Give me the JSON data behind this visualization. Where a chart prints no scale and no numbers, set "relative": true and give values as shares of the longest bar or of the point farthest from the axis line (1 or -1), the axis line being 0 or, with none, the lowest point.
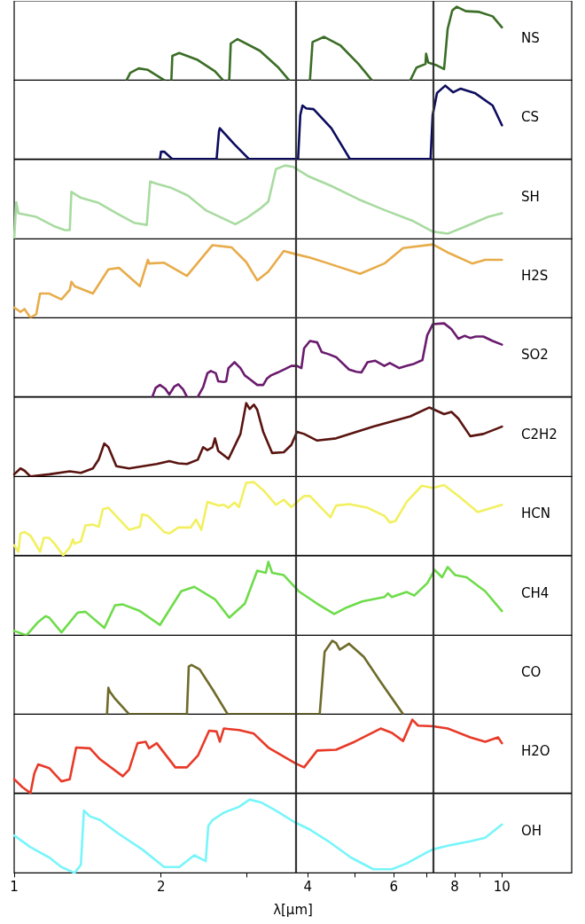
{
  "chart_data": [
    {
      "type": "line",
      "relative": true,
      "xlim": [
        1,
        13.9
      ],
      "tick_labels": false,
      "ref_lines": [
        {
          "axis": "x",
          "value": 3.78,
          "color": "#333333"
        },
        {
          "axis": "x",
          "value": 7.24,
          "color": "#333333"
        }
      ],
      "log": "x",
      "xticks": [
        1,
        2,
        4,
        6,
        8,
        10
      ],
      "series": [
        {
          "name": "NS",
          "color": "#3b6e26",
          "x": [
            1.7,
            1.73,
            1.8,
            1.88,
            2.03,
            2.06,
            2.1,
            2.11,
            2.18,
            2.37,
            2.58,
            2.68,
            2.72,
            2.76,
            2.78,
            2.87,
            3.19,
            3.47,
            3.66,
            3.8,
            4.04,
            4.09,
            4.32,
            4.67,
            5.08,
            5.41,
            5.9,
            6.49,
            6.68,
            6.97,
            6.99,
            7.06,
            7.36,
            7.61,
            7.74,
            7.91,
            8.08,
            8.43,
            8.98,
            9.57,
            10
          ],
          "values": [
            0,
            0.1,
            0.16,
            0.14,
            0,
            null,
            0,
            0.33,
            0.37,
            0.28,
            0.12,
            0,
            null,
            0,
            0.5,
            0.56,
            0.4,
            0.18,
            0,
            null,
            0,
            0.52,
            0.59,
            0.47,
            0.22,
            0,
            null,
            0,
            0.17,
            0.22,
            0.36,
            0.24,
            0.2,
            0.15,
            0.7,
            0.95,
            1.0,
            0.94,
            0.93,
            0.87,
            0.72
          ]
        }
      ]
    },
    {
      "type": "line",
      "relative": true,
      "xlim": [
        1,
        13.9
      ],
      "tick_labels": false,
      "ref_lines": [
        {
          "axis": "x",
          "value": 3.78,
          "color": "#333333"
        },
        {
          "axis": "x",
          "value": 7.24,
          "color": "#333333"
        }
      ],
      "log": "x",
      "xticks": [
        1,
        2,
        4,
        6,
        8,
        10
      ],
      "series": [
        {
          "name": "CS",
          "color": "#0c0c5e",
          "x": [
            1.99,
            2.0,
            2.03,
            2.11,
            2.6,
            2.63,
            2.64,
            2.69,
            2.83,
            3.03,
            3.82,
            3.86,
            3.9,
            3.97,
            4.11,
            4.47,
            4.88,
            7.14,
            7.21,
            7.36,
            7.65,
            7.94,
            8.23,
            8.8,
            9.57,
            10
          ],
          "values": [
            0,
            0.1,
            0.1,
            0,
            0,
            0.38,
            0.42,
            0.36,
            0.2,
            0,
            0,
            0.6,
            0.73,
            0.69,
            0.68,
            0.42,
            0,
            0,
            0.6,
            0.9,
            1.0,
            0.91,
            0.96,
            0.9,
            0.73,
            0.46
          ]
        }
      ]
    },
    {
      "type": "line",
      "relative": true,
      "xlim": [
        1,
        13.9
      ],
      "tick_labels": false,
      "ref_lines": [
        {
          "axis": "x",
          "value": 3.78,
          "color": "#333333"
        },
        {
          "axis": "x",
          "value": 7.24,
          "color": "#333333"
        }
      ],
      "log": "x",
      "xticks": [
        1,
        2,
        4,
        6,
        8,
        10
      ],
      "series": [
        {
          "name": "SH",
          "color": "#a8dba0",
          "x": [
            1.0,
            1.01,
            1.02,
            1.11,
            1.21,
            1.27,
            1.3,
            1.31,
            1.37,
            1.49,
            1.62,
            1.76,
            1.87,
            1.9,
            1.96,
            2.09,
            2.27,
            2.47,
            2.84,
            2.99,
            3.19,
            3.32,
            3.44,
            3.59,
            3.74,
            4.02,
            4.47,
            5.08,
            5.76,
            6.54,
            7.21,
            7.74,
            8.43,
            9.37,
            10
          ],
          "values": [
            0,
            0.5,
            0.35,
            0.3,
            0.17,
            0.12,
            0.12,
            0.64,
            0.56,
            0.49,
            0.35,
            0.22,
            0.19,
            0.78,
            0.75,
            0.7,
            0.59,
            0.39,
            0.2,
            0.28,
            0.41,
            0.51,
            0.95,
            1.0,
            0.98,
            0.85,
            0.72,
            0.54,
            0.39,
            0.25,
            0.1,
            0.07,
            0.17,
            0.3,
            0.35
          ]
        }
      ]
    },
    {
      "type": "line",
      "relative": true,
      "xlim": [
        1,
        13.9
      ],
      "tick_labels": false,
      "ref_lines": [
        {
          "axis": "x",
          "value": 3.78,
          "color": "#333333"
        },
        {
          "axis": "x",
          "value": 7.24,
          "color": "#333333"
        }
      ],
      "log": "x",
      "xticks": [
        1,
        2,
        4,
        6,
        8,
        10
      ],
      "series": [
        {
          "name": "H2S",
          "color": "#e8ac4a",
          "x": [
            1.0,
            1.03,
            1.05,
            1.08,
            1.11,
            1.13,
            1.18,
            1.25,
            1.3,
            1.31,
            1.33,
            1.45,
            1.56,
            1.64,
            1.81,
            1.88,
            1.89,
            2.03,
            2.26,
            2.55,
            2.79,
            2.99,
            3.15,
            3.32,
            3.57,
            3.76,
            4.04,
            4.41,
            5.12,
            5.74,
            6.27,
            7.22,
            7.74,
            8.69,
            9.24,
            10
          ],
          "values": [
            0.14,
            0.08,
            0.12,
            0,
            0.05,
            0.33,
            0.33,
            0.25,
            0.38,
            0.49,
            0.43,
            0.33,
            0.66,
            0.68,
            0.43,
            0.79,
            0.74,
            0.75,
            0.57,
            0.99,
            0.96,
            0.76,
            0.51,
            0.63,
            0.91,
            0.87,
            0.82,
            0.74,
            0.6,
            0.74,
            0.95,
            1.0,
            0.89,
            0.74,
            0.79,
            0.79
          ]
        }
      ]
    },
    {
      "type": "line",
      "relative": true,
      "xlim": [
        1,
        13.9
      ],
      "tick_labels": false,
      "ref_lines": [
        {
          "axis": "x",
          "value": 3.78,
          "color": "#333333"
        },
        {
          "axis": "x",
          "value": 7.24,
          "color": "#333333"
        }
      ],
      "log": "x",
      "xticks": [
        1,
        2,
        4,
        6,
        8,
        10
      ],
      "series": [
        {
          "name": "SO2",
          "color": "#6a1b6e",
          "x": [
            1.92,
            1.95,
            1.99,
            2.04,
            2.08,
            2.13,
            2.17,
            2.22,
            2.26,
            2.32,
            2.38,
            2.44,
            2.49,
            2.53,
            2.59,
            2.62,
            2.69,
            2.72,
            2.75,
            2.83,
            2.91,
            2.97,
            3.04,
            3.15,
            3.24,
            3.3,
            3.36,
            3.47,
            3.6,
            3.7,
            3.8,
            3.88,
            3.93,
            4.04,
            4.18,
            4.27,
            4.41,
            4.57,
            4.86,
            5.03,
            5.15,
            5.3,
            5.5,
            5.74,
            5.89,
            6.16,
            6.38,
            6.61,
            6.87,
            7.03,
            7.22,
            7.61,
            7.88,
            8.14,
            8.39,
            8.61,
            8.84,
            9.16,
            9.57,
            10
          ],
          "values": [
            0,
            0.12,
            0.16,
            0.11,
            0.03,
            0.14,
            0.17,
            0.1,
            0,
            null,
            0,
            0.13,
            0.32,
            0.35,
            0.32,
            0.21,
            0.2,
            0.21,
            0.39,
            0.47,
            0.39,
            0.29,
            0.24,
            0.16,
            0.16,
            0.25,
            0.29,
            0.33,
            0.38,
            0.42,
            0.42,
            0.39,
            0.66,
            0.76,
            0.74,
            0.61,
            0.58,
            0.54,
            0.37,
            0.34,
            0.33,
            0.47,
            0.49,
            0.42,
            0.46,
            0.39,
            0.42,
            0.45,
            0.5,
            0.84,
            0.99,
            1.0,
            0.92,
            0.79,
            0.83,
            0.8,
            0.82,
            0.82,
            0.76,
            0.71
          ]
        }
      ]
    },
    {
      "type": "line",
      "relative": true,
      "xlim": [
        1,
        13.9
      ],
      "tick_labels": false,
      "ref_lines": [
        {
          "axis": "x",
          "value": 3.78,
          "color": "#333333"
        },
        {
          "axis": "x",
          "value": 7.24,
          "color": "#333333"
        }
      ],
      "log": "x",
      "xticks": [
        1,
        2,
        4,
        6,
        8,
        10
      ],
      "series": [
        {
          "name": "C2H2",
          "color": "#5a1410",
          "x": [
            1.0,
            1.03,
            1.05,
            1.08,
            1.18,
            1.3,
            1.37,
            1.45,
            1.49,
            1.53,
            1.56,
            1.62,
            1.72,
            1.96,
            2.08,
            2.17,
            2.26,
            2.38,
            2.44,
            2.49,
            2.55,
            2.58,
            2.62,
            2.75,
            2.91,
            2.99,
            3.04,
            3.1,
            3.15,
            3.24,
            3.38,
            3.57,
            3.7,
            3.8,
            3.93,
            4.18,
            4.57,
            5.45,
            6.49,
            7.09,
            7.22,
            7.61,
            7.88,
            8.14,
            8.61,
            9.16,
            10
          ],
          "values": [
            0.03,
            0.11,
            0.08,
            0,
            0.03,
            0.07,
            0.05,
            0.11,
            0.23,
            0.45,
            0.4,
            0.14,
            0.11,
            0.17,
            0.21,
            0.18,
            0.17,
            0.23,
            0.4,
            0.36,
            0.4,
            0.52,
            0.35,
            0.24,
            0.58,
            1.0,
            0.92,
            0.98,
            0.91,
            0.61,
            0.32,
            0.33,
            0.43,
            0.61,
            0.58,
            0.49,
            0.52,
            0.68,
            0.82,
            0.94,
            0.92,
            0.85,
            0.88,
            0.79,
            0.55,
            0.58,
            0.68
          ]
        }
      ]
    },
    {
      "type": "line",
      "relative": true,
      "xlim": [
        1,
        13.9
      ],
      "tick_labels": false,
      "ref_lines": [
        {
          "axis": "x",
          "value": 3.78,
          "color": "#333333"
        },
        {
          "axis": "x",
          "value": 7.24,
          "color": "#333333"
        }
      ],
      "log": "x",
      "xticks": [
        1,
        2,
        4,
        6,
        8,
        10
      ],
      "series": [
        {
          "name": "HCN",
          "color": "#f2f060",
          "x": [
            1.0,
            1.02,
            1.03,
            1.05,
            1.08,
            1.13,
            1.15,
            1.18,
            1.21,
            1.26,
            1.3,
            1.32,
            1.33,
            1.37,
            1.4,
            1.45,
            1.49,
            1.52,
            1.56,
            1.72,
            1.81,
            1.83,
            1.88,
            2.03,
            2.08,
            2.17,
            2.3,
            2.36,
            2.42,
            2.49,
            2.62,
            2.69,
            2.75,
            2.83,
            2.89,
            2.99,
            3.1,
            3.24,
            3.44,
            3.57,
            3.7,
            3.93,
            4.04,
            4.45,
            4.57,
            4.86,
            5.3,
            5.74,
            5.89,
            6.05,
            6.38,
            6.85,
            7.22,
            7.61,
            8.14,
            8.92,
            10
          ],
          "values": [
            0.14,
            0.05,
            0.3,
            0.32,
            0.27,
            0.05,
            0.24,
            0.24,
            0.16,
            0,
            0.11,
            0.22,
            0.16,
            0.19,
            0.41,
            0.42,
            0.39,
            0.63,
            0.65,
            0.35,
            0.39,
            0.56,
            0.54,
            0.32,
            0.3,
            0.38,
            0.38,
            0.49,
            0.35,
            0.73,
            0.68,
            0.69,
            0.65,
            0.72,
            0.66,
            0.99,
            1.0,
            0.89,
            0.69,
            0.76,
            0.66,
            0.81,
            0.81,
            0.52,
            0.68,
            0.7,
            0.65,
            0.54,
            0.45,
            0.47,
            0.73,
            0.95,
            0.92,
            0.96,
            0.81,
            0.59,
            0.69
          ]
        }
      ]
    },
    {
      "type": "line",
      "relative": true,
      "xlim": [
        1,
        13.9
      ],
      "tick_labels": false,
      "ref_lines": [
        {
          "axis": "x",
          "value": 3.78,
          "color": "#333333"
        },
        {
          "axis": "x",
          "value": 7.24,
          "color": "#333333"
        }
      ],
      "log": "x",
      "xticks": [
        1,
        2,
        4,
        6,
        8,
        10
      ],
      "series": [
        {
          "name": "CH4",
          "color": "#6edc4a",
          "x": [
            1.0,
            1.06,
            1.12,
            1.16,
            1.18,
            1.25,
            1.35,
            1.4,
            1.53,
            1.61,
            1.67,
            1.81,
            1.99,
            2.2,
            2.34,
            2.58,
            2.76,
            2.97,
            3.15,
            3.28,
            3.32,
            3.38,
            3.57,
            3.83,
            4.18,
            4.53,
            4.81,
            5.17,
            5.74,
            5.84,
            5.95,
            6.38,
            6.61,
            7.03,
            7.28,
            7.54,
            7.74,
            8.02,
            8.46,
            9.24,
            10
          ],
          "values": [
            0.06,
            0,
            0.18,
            0.26,
            0.24,
            0.04,
            0.31,
            0.32,
            0.1,
            0.41,
            0.42,
            0.33,
            0.14,
            0.6,
            0.66,
            0.49,
            0.24,
            0.43,
            0.88,
            0.85,
            1.0,
            0.85,
            0.82,
            0.6,
            0.43,
            0.29,
            0.38,
            0.46,
            0.52,
            0.57,
            0.52,
            0.59,
            0.54,
            0.71,
            0.89,
            0.79,
            0.93,
            0.82,
            0.79,
            0.6,
            0.33
          ]
        }
      ]
    },
    {
      "type": "line",
      "relative": true,
      "xlim": [
        1,
        13.9
      ],
      "tick_labels": false,
      "ref_lines": [
        {
          "axis": "x",
          "value": 3.78,
          "color": "#333333"
        },
        {
          "axis": "x",
          "value": 7.24,
          "color": "#333333"
        }
      ],
      "log": "x",
      "xticks": [
        1,
        2,
        4,
        6,
        8,
        10
      ],
      "series": [
        {
          "name": "CO",
          "color": "#6e6b2a",
          "x": [
            1.55,
            1.56,
            1.57,
            1.61,
            1.72,
            2.26,
            2.28,
            2.31,
            2.4,
            2.55,
            2.74,
            4.23,
            4.33,
            4.49,
            4.57,
            4.65,
            4.86,
            5.21,
            5.64,
            6.27
          ],
          "values": [
            0,
            0.36,
            0.31,
            0.21,
            0,
            0,
            0.65,
            0.67,
            0.61,
            0.34,
            0,
            0,
            0.85,
            1.0,
            0.97,
            0.88,
            0.96,
            0.78,
            0.44,
            0
          ]
        }
      ]
    },
    {
      "type": "line",
      "relative": true,
      "xlim": [
        1,
        13.9
      ],
      "tick_labels": false,
      "ref_lines": [
        {
          "axis": "x",
          "value": 3.78,
          "color": "#333333"
        },
        {
          "axis": "x",
          "value": 7.24,
          "color": "#333333"
        }
      ],
      "log": "x",
      "xticks": [
        1,
        2,
        4,
        6,
        8,
        10
      ],
      "series": [
        {
          "name": "H2O",
          "color": "#e83a28",
          "x": [
            1.0,
            1.04,
            1.08,
            1.1,
            1.12,
            1.18,
            1.25,
            1.3,
            1.34,
            1.43,
            1.5,
            1.67,
            1.72,
            1.79,
            1.86,
            1.89,
            1.96,
            2.14,
            2.26,
            2.38,
            2.51,
            2.6,
            2.64,
            2.69,
            2.89,
            3.1,
            3.32,
            3.76,
            3.93,
            4.18,
            4.57,
            4.99,
            5.64,
            5.95,
            6.27,
            6.55,
            6.73,
            7.22,
            7.74,
            8.61,
            9.24,
            9.82,
            10
          ],
          "values": [
            0.19,
            0.08,
            0,
            0.27,
            0.39,
            0.34,
            0.16,
            0.19,
            0.62,
            0.61,
            0.46,
            0.23,
            0.32,
            0.68,
            0.7,
            0.61,
            0.68,
            0.35,
            0.35,
            0.51,
            0.85,
            0.84,
            0.7,
            0.88,
            0.86,
            0.81,
            0.62,
            0.41,
            0.35,
            0.58,
            0.59,
            0.7,
            0.88,
            0.82,
            0.71,
            1.0,
            0.92,
            0.91,
            0.88,
            0.76,
            0.7,
            0.76,
            0.68
          ]
        }
      ]
    },
    {
      "type": "line",
      "relative": true,
      "xlim": [
        1,
        13.9
      ],
      "xticks": [
        1,
        2,
        {
          "value": 3,
          "label": null
        },
        4,
        {
          "value": 5,
          "label": null
        },
        6,
        {
          "value": 7,
          "label": null
        },
        8,
        {
          "value": 9,
          "label": null
        },
        10
      ],
      "xlabel": "λ[μm]",
      "log": "x",
      "ref_lines": [
        {
          "axis": "x",
          "value": 3.78,
          "color": "#333333"
        },
        {
          "axis": "x",
          "value": 7.24,
          "color": "#333333"
        }
      ],
      "series": [
        {
          "name": "OH",
          "color": "#78f5fa",
          "x": [
            1.0,
            1.08,
            1.18,
            1.25,
            1.33,
            1.37,
            1.39,
            1.43,
            1.5,
            1.64,
            1.83,
            2.03,
            2.18,
            2.34,
            2.47,
            2.5,
            2.55,
            2.69,
            2.89,
            3.04,
            3.21,
            3.44,
            3.76,
            4.04,
            4.41,
            4.9,
            5.45,
            5.95,
            6.38,
            6.97,
            7.22,
            7.74,
            8.61,
            9.24,
            10
          ],
          "values": [
            0.51,
            0.35,
            0.21,
            0.08,
            0,
            0.11,
            0.85,
            0.77,
            0.72,
            0.53,
            0.32,
            0.08,
            0.08,
            0.24,
            0.16,
            0.64,
            0.72,
            0.82,
            0.9,
            1.0,
            0.96,
            0.85,
            0.69,
            0.59,
            0.43,
            0.21,
            0.05,
            0.05,
            0.13,
            0.27,
            0.32,
            0.37,
            0.43,
            0.48,
            0.66
          ]
        }
      ]
    }
  ]
}
